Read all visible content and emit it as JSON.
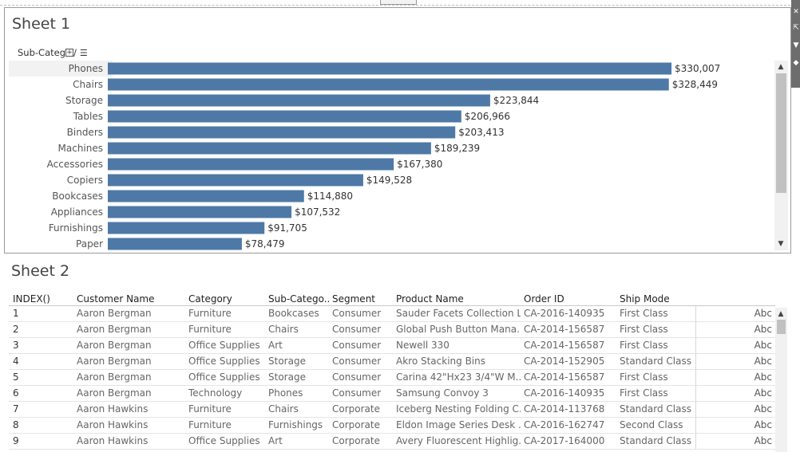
{
  "sheet1": {
    "title": "Sheet 1",
    "dimension_header": "Sub-Categ",
    "dimension_suffix": "/",
    "plus_glyph": "+",
    "sort_glyph": "☰"
  },
  "chart_data": {
    "type": "bar",
    "orientation": "horizontal",
    "categories": [
      "Phones",
      "Chairs",
      "Storage",
      "Tables",
      "Binders",
      "Machines",
      "Accessories",
      "Copiers",
      "Bookcases",
      "Appliances",
      "Furnishings",
      "Paper"
    ],
    "values": [
      330007,
      328449,
      223844,
      206966,
      203413,
      189239,
      167380,
      149528,
      114880,
      107532,
      91705,
      78479
    ],
    "data_labels": [
      "$330,007",
      "$328,449",
      "$223,844",
      "$206,966",
      "$203,413",
      "$189,239",
      "$167,380",
      "$149,528",
      "$114,880",
      "$107,532",
      "$91,705",
      "$78,479"
    ],
    "bar_color": "#4e79a7",
    "highlight_row_color": "#f2f2f2",
    "xlim": [
      0,
      344000
    ],
    "grid": false,
    "legend": "none"
  },
  "sheet2": {
    "title": "Sheet 2",
    "columns": [
      "INDEX()",
      "Customer Name",
      "Category",
      "Sub-Catego..",
      "Segment",
      "Product Name",
      "Order ID",
      "Ship Mode"
    ],
    "abc_label": "Abc",
    "rows": [
      [
        "1",
        "Aaron Bergman",
        "Furniture",
        "Bookcases",
        "Consumer",
        "Sauder Facets Collection L..",
        "CA-2016-140935",
        "First Class"
      ],
      [
        "2",
        "Aaron Bergman",
        "Furniture",
        "Chairs",
        "Consumer",
        "Global Push Button Mana..",
        "CA-2014-156587",
        "First Class"
      ],
      [
        "3",
        "Aaron Bergman",
        "Office Supplies",
        "Art",
        "Consumer",
        "Newell 330",
        "CA-2014-156587",
        "First Class"
      ],
      [
        "4",
        "Aaron Bergman",
        "Office Supplies",
        "Storage",
        "Consumer",
        "Akro Stacking Bins",
        "CA-2014-152905",
        "Standard Class"
      ],
      [
        "5",
        "Aaron Bergman",
        "Office Supplies",
        "Storage",
        "Consumer",
        "Carina 42\"Hx23 3/4\"W M..",
        "CA-2014-156587",
        "First Class"
      ],
      [
        "6",
        "Aaron Bergman",
        "Technology",
        "Phones",
        "Consumer",
        "Samsung Convoy 3",
        "CA-2016-140935",
        "First Class"
      ],
      [
        "7",
        "Aaron Hawkins",
        "Furniture",
        "Chairs",
        "Corporate",
        "Iceberg Nesting Folding C..",
        "CA-2014-113768",
        "Standard Class"
      ],
      [
        "8",
        "Aaron Hawkins",
        "Furniture",
        "Furnishings",
        "Corporate",
        "Eldon Image Series Desk ..",
        "CA-2016-162747",
        "Second Class"
      ],
      [
        "9",
        "Aaron Hawkins",
        "Office Supplies",
        "Art",
        "Corporate",
        "Avery Fluorescent Highlig..",
        "CA-2017-164000",
        "Standard Class"
      ]
    ]
  }
}
